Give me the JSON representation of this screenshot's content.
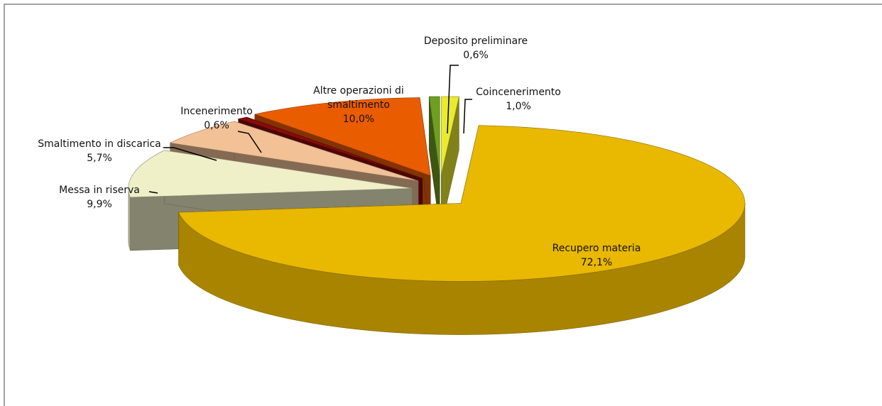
{
  "chart_data": {
    "type": "pie3d",
    "categories": [
      "Coincenerimento",
      "Recupero materia",
      "Messa in riserva",
      "Smaltimento in discarica",
      "Incenerimento",
      "Altre operazioni di smaltimento",
      "Deposito preliminare"
    ],
    "values": [
      1.0,
      72.1,
      9.9,
      5.7,
      0.6,
      10.0,
      0.6
    ],
    "value_labels": [
      "1,0%",
      "72,1%",
      "9,9%",
      "5,7%",
      "0,6%",
      "10,0%",
      "0,6%"
    ],
    "colors": [
      "#eaea30",
      "#e9b800",
      "#efefc8",
      "#f2c196",
      "#8a0a0a",
      "#ea5c00",
      "#6e9e22"
    ]
  }
}
